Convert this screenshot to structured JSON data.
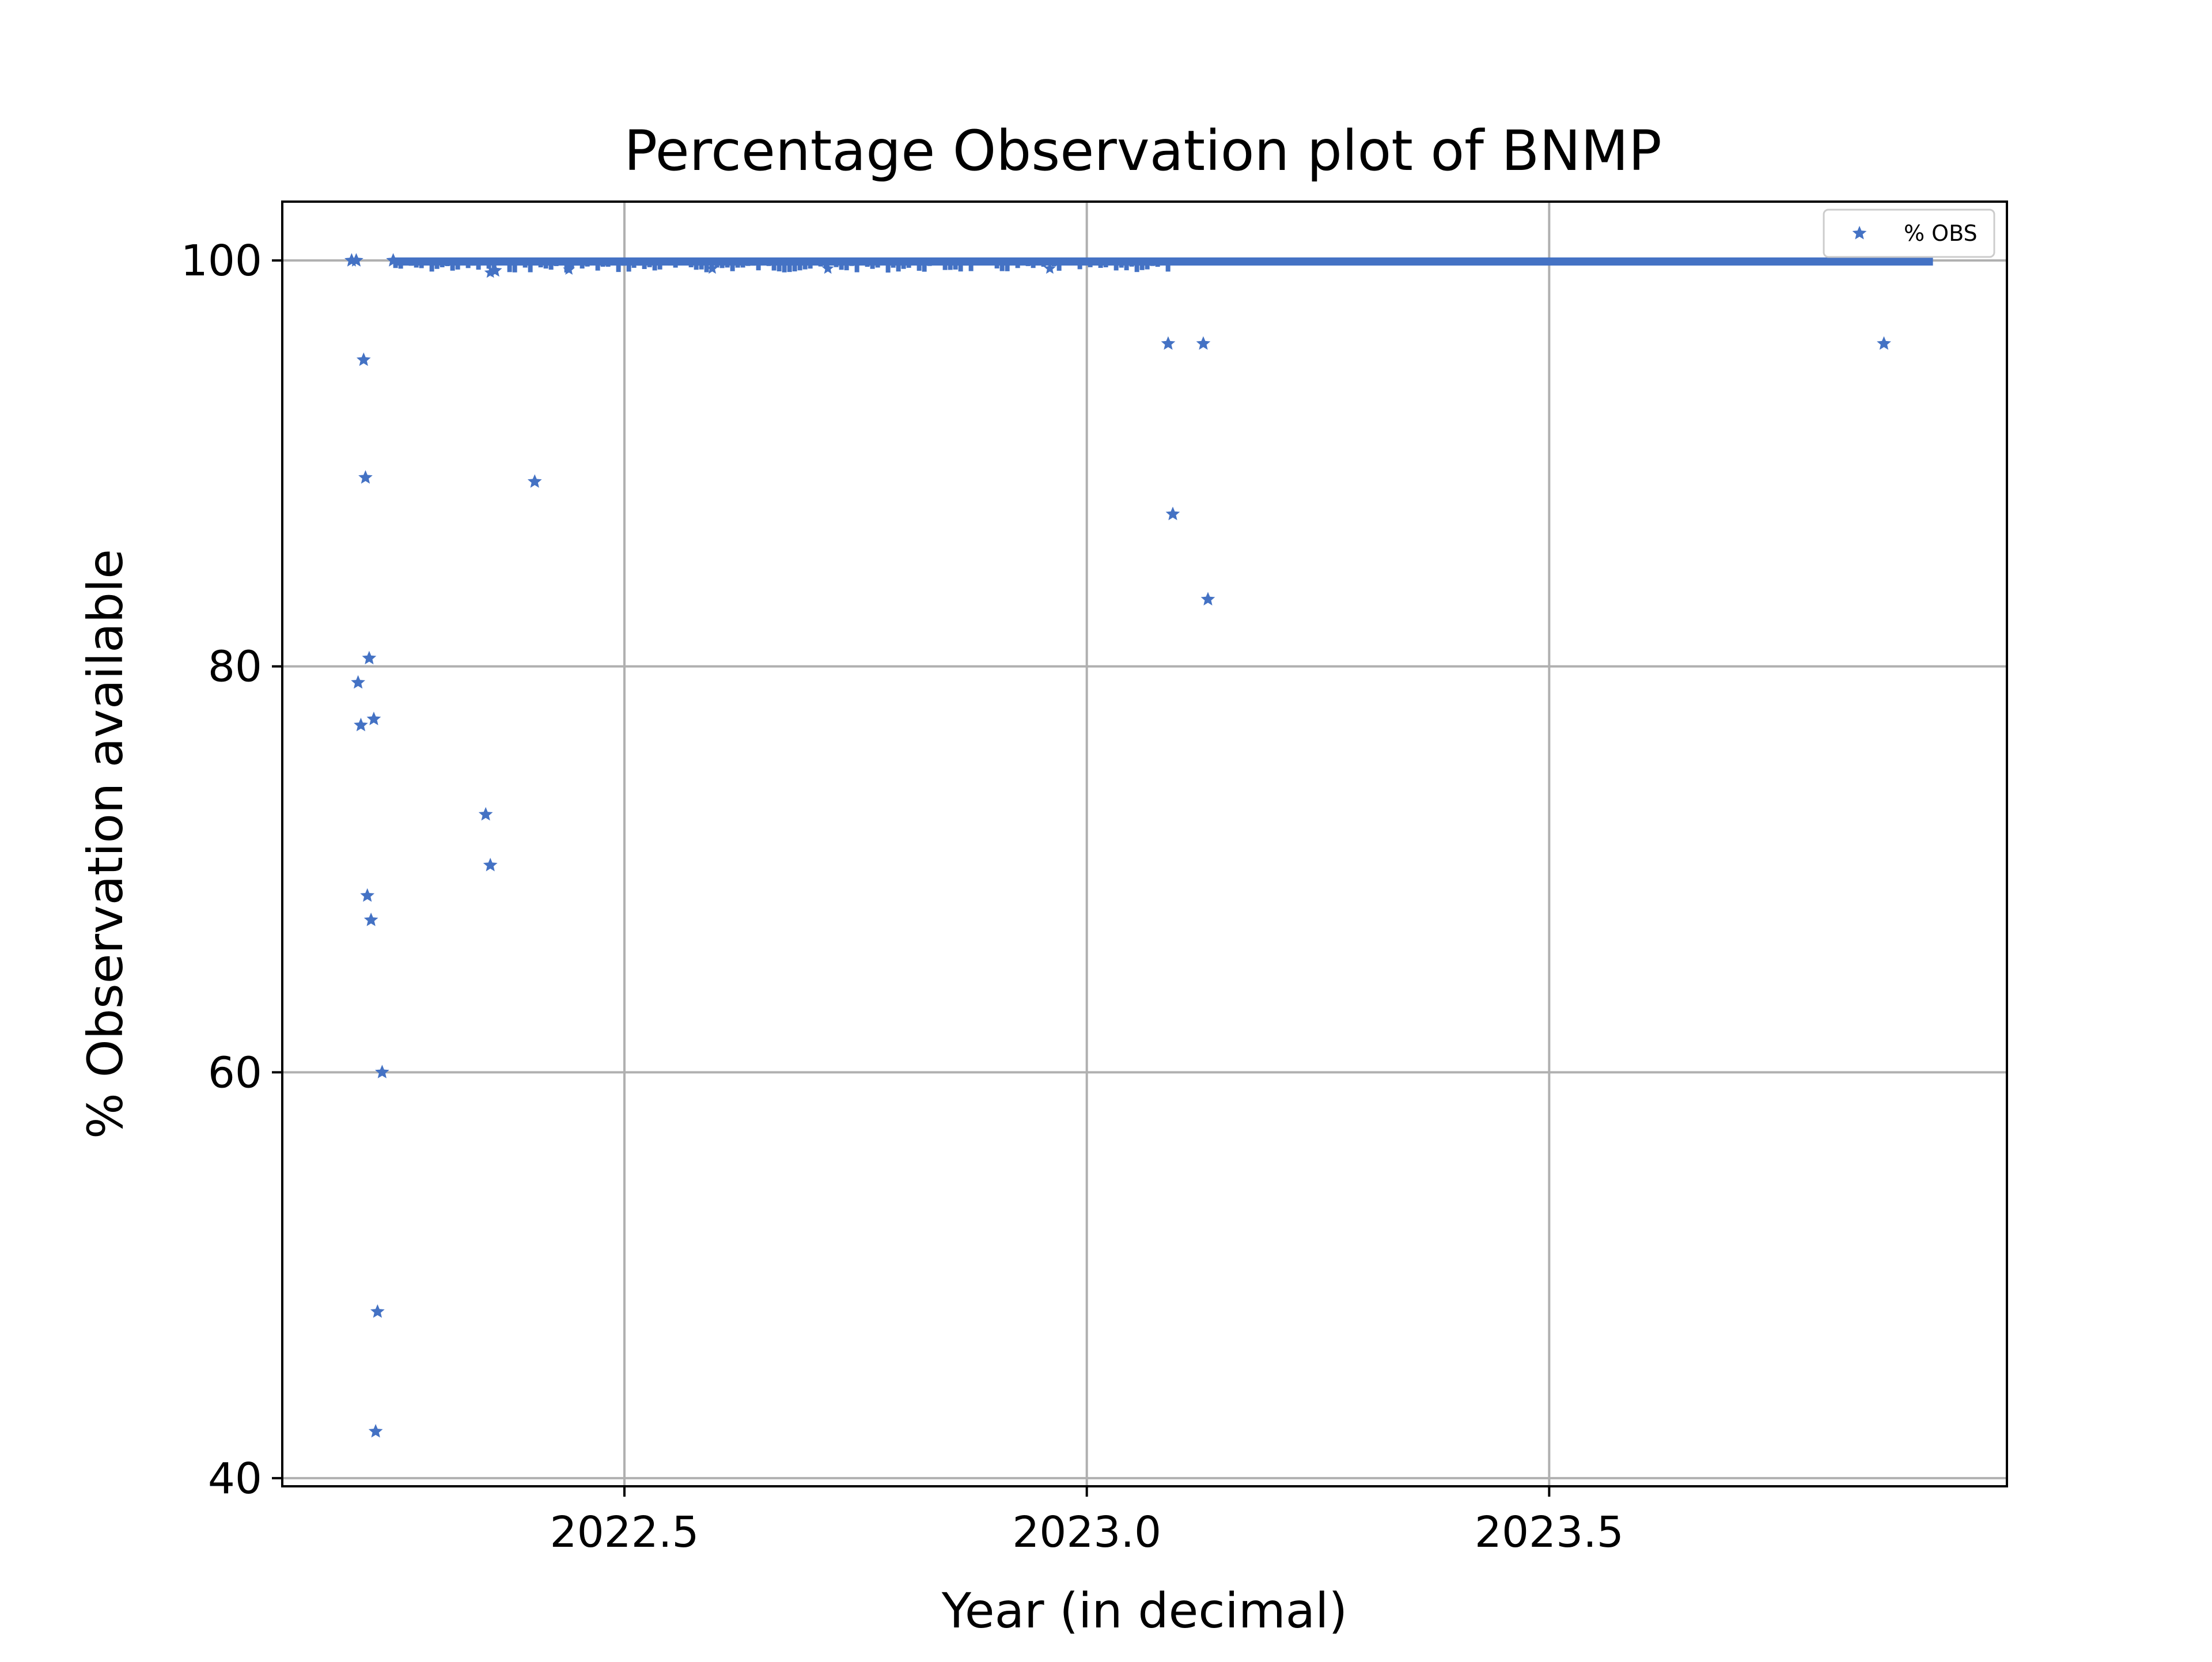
{
  "chart_data": {
    "type": "scatter",
    "title": "Percentage Observation plot of BNMP",
    "xlabel": "Year (in decimal)",
    "ylabel": "% Observation available",
    "xlim": [
      2022.13,
      2023.995
    ],
    "ylim": [
      39.6,
      102.9
    ],
    "xticks": [
      2022.5,
      2023.0,
      2023.5
    ],
    "xtick_labels": [
      "2022.5",
      "2023.0",
      "2023.5"
    ],
    "yticks": [
      40,
      60,
      80,
      100
    ],
    "ytick_labels": [
      "40",
      "60",
      "80",
      "100"
    ],
    "grid": true,
    "legend": {
      "position": "top-right",
      "entries": [
        "% OBS"
      ]
    },
    "marker": "star",
    "colors": {
      "series": "#4472c4",
      "grid": "#b0b0b0",
      "axes": "#000000"
    },
    "dense_band": {
      "description_free": true,
      "x_start": 2022.25,
      "x_end": 2023.915,
      "y_nominal": 100.0,
      "y_min_observed": 99.4
    },
    "series": [
      {
        "name": "% OBS",
        "x": [
          2022.205,
          2022.21,
          2022.212,
          2022.215,
          2022.218,
          2022.22,
          2022.222,
          2022.224,
          2022.226,
          2022.229,
          2022.231,
          2022.233,
          2022.238,
          2022.25,
          2022.35,
          2022.355,
          2022.36,
          2022.403,
          2023.088,
          2023.093,
          2023.126,
          2023.131,
          2023.862
        ],
        "y": [
          100,
          100,
          79.2,
          77.1,
          95.1,
          89.3,
          68.7,
          80.4,
          67.5,
          77.4,
          42.3,
          48.2,
          60.0,
          100,
          72.7,
          70.2,
          99.5,
          89.1,
          95.9,
          87.5,
          95.9,
          83.3,
          95.9
        ]
      }
    ]
  }
}
